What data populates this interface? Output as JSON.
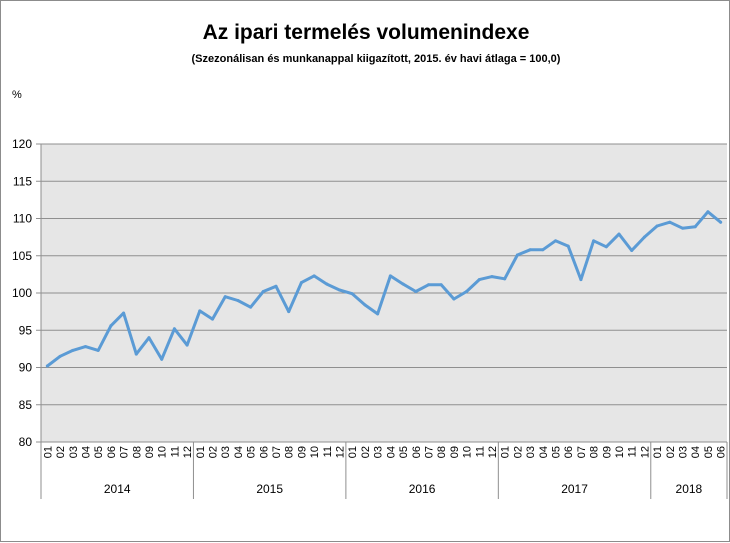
{
  "chart_data": {
    "type": "line",
    "title": "Az ipari termelés volumenindexe",
    "subtitle": "(Szezonálisan és munkanappal kiigazított, 2015. év havi átlaga = 100,0)",
    "ylabel": "%",
    "xlabel": "",
    "ylim": [
      80,
      120
    ],
    "yticks": [
      80,
      85,
      90,
      95,
      100,
      105,
      110,
      115,
      120
    ],
    "grid": true,
    "plot_background": "#e6e6e6",
    "line_color": "#5b9bd5",
    "years": [
      {
        "label": "2014",
        "months": [
          "01",
          "02",
          "03",
          "04",
          "05",
          "06",
          "07",
          "08",
          "09",
          "10",
          "11",
          "12"
        ]
      },
      {
        "label": "2015",
        "months": [
          "01",
          "02",
          "03",
          "04",
          "05",
          "06",
          "07",
          "08",
          "09",
          "10",
          "11",
          "12"
        ]
      },
      {
        "label": "2016",
        "months": [
          "01",
          "02",
          "03",
          "04",
          "05",
          "06",
          "07",
          "08",
          "09",
          "10",
          "11",
          "12"
        ]
      },
      {
        "label": "2017",
        "months": [
          "01",
          "02",
          "03",
          "04",
          "05",
          "06",
          "07",
          "08",
          "09",
          "10",
          "11",
          "12"
        ]
      },
      {
        "label": "2018",
        "months": [
          "01",
          "02",
          "03",
          "04",
          "05",
          "06"
        ]
      }
    ],
    "series": [
      {
        "name": "Ipari termelés volumenindexe",
        "values": [
          90.2,
          91.5,
          92.3,
          92.8,
          92.3,
          95.6,
          97.3,
          91.8,
          94.0,
          91.1,
          95.2,
          93.0,
          97.6,
          96.5,
          99.5,
          99.0,
          98.1,
          100.2,
          100.9,
          97.5,
          101.4,
          102.3,
          101.2,
          100.4,
          99.9,
          98.4,
          97.2,
          102.3,
          101.2,
          100.2,
          101.1,
          101.1,
          99.2,
          100.2,
          101.8,
          102.2,
          101.9,
          105.1,
          105.8,
          105.8,
          107.0,
          106.3,
          101.8,
          107.0,
          106.2,
          107.9,
          105.7,
          107.5,
          109.0,
          109.5,
          108.7,
          108.9,
          110.9,
          109.5
        ]
      }
    ]
  }
}
